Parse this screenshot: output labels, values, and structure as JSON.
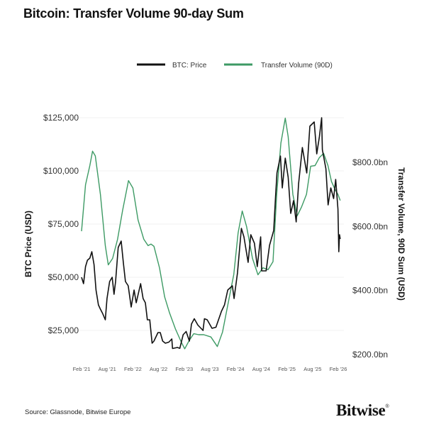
{
  "title": "Bitcoin: Transfer Volume 90-day Sum",
  "source": "Source: Glassnode, Bitwise Europe",
  "logo": {
    "text": "Bitwise",
    "mark": "®"
  },
  "chart_data": {
    "type": "line",
    "title": "Bitcoin: Transfer Volume 90-day Sum",
    "legend_position": "top",
    "grid": true,
    "x_ticks": [
      "Feb '21",
      "Aug '21",
      "Feb '22",
      "Aug '22",
      "Feb '23",
      "Aug '23",
      "Feb '24",
      "Aug '24",
      "Feb '25",
      "Aug '25",
      "Feb '26"
    ],
    "xlim": [
      "2021-02",
      "2026-02"
    ],
    "y_left": {
      "label": "BTC Price (USD)",
      "ticks": [
        "$25,000",
        "$50,000",
        "$75,000",
        "$100,000",
        "$125,000"
      ],
      "tick_values": [
        25000,
        50000,
        75000,
        100000,
        125000
      ],
      "lim": [
        0,
        125000
      ]
    },
    "y_right": {
      "label": "Transfer Volume, 90D Sum (USD)",
      "ticks": [
        "$200.0bn",
        "$400.0bn",
        "$600.0bn",
        "$800.0bn"
      ],
      "tick_values": [
        200,
        400,
        600,
        800
      ],
      "unit": "bn USD"
    },
    "series": [
      {
        "name": "BTC: Price",
        "axis": "left",
        "color": "#111111",
        "points": [
          [
            "2021-02-01",
            50000
          ],
          [
            "2021-02-15",
            47000
          ],
          [
            "2021-03-01",
            55000
          ],
          [
            "2021-03-15",
            58000
          ],
          [
            "2021-04-01",
            59000
          ],
          [
            "2021-04-15",
            62000
          ],
          [
            "2021-05-01",
            56000
          ],
          [
            "2021-05-15",
            44000
          ],
          [
            "2021-06-01",
            37000
          ],
          [
            "2021-06-15",
            35000
          ],
          [
            "2021-07-01",
            33000
          ],
          [
            "2021-07-20",
            30000
          ],
          [
            "2021-08-01",
            40000
          ],
          [
            "2021-08-20",
            48000
          ],
          [
            "2021-09-07",
            50000
          ],
          [
            "2021-09-20",
            42000
          ],
          [
            "2021-10-01",
            48000
          ],
          [
            "2021-10-20",
            64000
          ],
          [
            "2021-11-10",
            67000
          ],
          [
            "2021-11-25",
            57000
          ],
          [
            "2021-12-10",
            48000
          ],
          [
            "2021-12-30",
            46000
          ],
          [
            "2022-01-20",
            36000
          ],
          [
            "2022-02-10",
            44000
          ],
          [
            "2022-02-25",
            38000
          ],
          [
            "2022-03-28",
            47000
          ],
          [
            "2022-04-15",
            40000
          ],
          [
            "2022-05-01",
            38000
          ],
          [
            "2022-05-15",
            30000
          ],
          [
            "2022-06-01",
            30000
          ],
          [
            "2022-06-18",
            19000
          ],
          [
            "2022-07-01",
            20000
          ],
          [
            "2022-07-30",
            24000
          ],
          [
            "2022-08-15",
            24000
          ],
          [
            "2022-09-01",
            20000
          ],
          [
            "2022-09-20",
            19000
          ],
          [
            "2022-10-15",
            19500
          ],
          [
            "2022-11-05",
            21000
          ],
          [
            "2022-11-10",
            16500
          ],
          [
            "2022-12-15",
            17000
          ],
          [
            "2023-01-01",
            16600
          ],
          [
            "2023-01-25",
            23000
          ],
          [
            "2023-02-15",
            24500
          ],
          [
            "2023-03-10",
            20000
          ],
          [
            "2023-03-25",
            28000
          ],
          [
            "2023-04-14",
            30500
          ],
          [
            "2023-05-10",
            27500
          ],
          [
            "2023-06-15",
            25000
          ],
          [
            "2023-06-25",
            30500
          ],
          [
            "2023-07-15",
            30000
          ],
          [
            "2023-08-18",
            26000
          ],
          [
            "2023-09-15",
            26500
          ],
          [
            "2023-10-24",
            34000
          ],
          [
            "2023-11-15",
            37000
          ],
          [
            "2023-12-08",
            44000
          ],
          [
            "2024-01-10",
            46000
          ],
          [
            "2024-01-22",
            40000
          ],
          [
            "2024-02-15",
            52000
          ],
          [
            "2024-03-14",
            73000
          ],
          [
            "2024-04-01",
            69000
          ],
          [
            "2024-05-01",
            57000
          ],
          [
            "2024-05-20",
            70000
          ],
          [
            "2024-06-15",
            66000
          ],
          [
            "2024-07-05",
            55000
          ],
          [
            "2024-07-29",
            69000
          ],
          [
            "2024-08-05",
            53000
          ],
          [
            "2024-09-06",
            53000
          ],
          [
            "2024-09-30",
            65000
          ],
          [
            "2024-10-30",
            72000
          ],
          [
            "2024-11-12",
            88000
          ],
          [
            "2024-11-22",
            99000
          ],
          [
            "2024-12-17",
            107000
          ],
          [
            "2024-12-30",
            92000
          ],
          [
            "2025-01-20",
            106000
          ],
          [
            "2025-02-10",
            97000
          ],
          [
            "2025-02-28",
            80000
          ],
          [
            "2025-03-20",
            86000
          ],
          [
            "2025-04-08",
            76000
          ],
          [
            "2025-04-25",
            94000
          ],
          [
            "2025-05-22",
            111000
          ],
          [
            "2025-06-22",
            99000
          ],
          [
            "2025-07-14",
            121000
          ],
          [
            "2025-08-14",
            123000
          ],
          [
            "2025-09-01",
            108000
          ],
          [
            "2025-09-20",
            116000
          ],
          [
            "2025-10-06",
            125000
          ],
          [
            "2025-10-11",
            110000
          ],
          [
            "2025-11-05",
            101000
          ],
          [
            "2025-11-21",
            84000
          ],
          [
            "2025-12-10",
            92000
          ],
          [
            "2025-12-30",
            87000
          ],
          [
            "2026-01-14",
            96000
          ],
          [
            "2026-01-30",
            82000
          ],
          [
            "2026-02-05",
            62000
          ],
          [
            "2026-02-10",
            70000
          ],
          [
            "2026-02-15",
            68000
          ]
        ]
      },
      {
        "name": "Transfer Volume (90D)",
        "axis": "right",
        "color": "#3d9a64",
        "points": [
          [
            "2021-02-01",
            585
          ],
          [
            "2021-03-01",
            730
          ],
          [
            "2021-04-01",
            790
          ],
          [
            "2021-04-20",
            835
          ],
          [
            "2021-05-10",
            820
          ],
          [
            "2021-06-15",
            700
          ],
          [
            "2021-07-20",
            540
          ],
          [
            "2021-08-10",
            480
          ],
          [
            "2021-09-10",
            500
          ],
          [
            "2021-10-15",
            560
          ],
          [
            "2021-11-20",
            650
          ],
          [
            "2022-01-01",
            743
          ],
          [
            "2022-02-01",
            720
          ],
          [
            "2022-03-10",
            620
          ],
          [
            "2022-04-20",
            560
          ],
          [
            "2022-05-20",
            540
          ],
          [
            "2022-06-10",
            545
          ],
          [
            "2022-07-01",
            538
          ],
          [
            "2022-08-10",
            470
          ],
          [
            "2022-09-15",
            380
          ],
          [
            "2022-10-20",
            330
          ],
          [
            "2022-12-01",
            280
          ],
          [
            "2023-01-10",
            240
          ],
          [
            "2023-02-05",
            218
          ],
          [
            "2023-03-10",
            245
          ],
          [
            "2023-04-10",
            265
          ],
          [
            "2023-05-15",
            262
          ],
          [
            "2023-06-20",
            262
          ],
          [
            "2023-08-10",
            255
          ],
          [
            "2023-09-25",
            225
          ],
          [
            "2023-11-01",
            270
          ],
          [
            "2023-12-15",
            370
          ],
          [
            "2024-01-20",
            450
          ],
          [
            "2024-02-20",
            580
          ],
          [
            "2024-03-20",
            648
          ],
          [
            "2024-04-20",
            600
          ],
          [
            "2024-06-01",
            500
          ],
          [
            "2024-07-10",
            449
          ],
          [
            "2024-08-15",
            471
          ],
          [
            "2024-09-20",
            465
          ],
          [
            "2024-10-25",
            490
          ],
          [
            "2024-11-20",
            700
          ],
          [
            "2024-12-20",
            860
          ],
          [
            "2025-01-20",
            938
          ],
          [
            "2025-02-10",
            880
          ],
          [
            "2025-03-15",
            700
          ],
          [
            "2025-04-15",
            633
          ],
          [
            "2025-05-15",
            660
          ],
          [
            "2025-06-20",
            700
          ],
          [
            "2025-07-20",
            788
          ],
          [
            "2025-08-20",
            790
          ],
          [
            "2025-09-20",
            815
          ],
          [
            "2025-10-20",
            828
          ],
          [
            "2025-11-20",
            790
          ],
          [
            "2025-12-15",
            740
          ],
          [
            "2026-01-10",
            715
          ],
          [
            "2026-01-30",
            700
          ],
          [
            "2026-02-15",
            681
          ]
        ]
      }
    ]
  }
}
